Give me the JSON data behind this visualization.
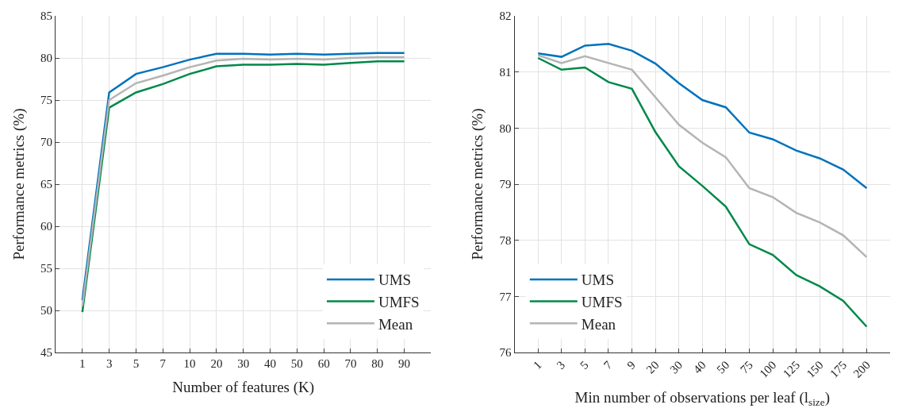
{
  "chart_data": [
    {
      "type": "line",
      "xlabel": "Number of features (K)",
      "ylabel": "Performance metrics (%)",
      "categories": [
        "1",
        "3",
        "5",
        "7",
        "10",
        "20",
        "30",
        "40",
        "50",
        "60",
        "70",
        "80",
        "90"
      ],
      "ylim": [
        45,
        85
      ],
      "yticks": [
        45,
        50,
        55,
        60,
        65,
        70,
        75,
        80,
        85
      ],
      "grid": true,
      "legend": "bottom right",
      "series": [
        {
          "name": "UMS",
          "color": "#0072bd",
          "values": [
            51.2,
            75.9,
            78.1,
            78.9,
            79.8,
            80.5,
            80.5,
            80.4,
            80.5,
            80.4,
            80.5,
            80.6,
            80.6
          ]
        },
        {
          "name": "UMFS",
          "color": "#00884a",
          "values": [
            49.8,
            74.1,
            75.9,
            76.9,
            78.1,
            79.0,
            79.2,
            79.2,
            79.3,
            79.2,
            79.4,
            79.6,
            79.6
          ]
        },
        {
          "name": "Mean",
          "color": "#b4b4b4",
          "values": [
            50.5,
            75.0,
            77.0,
            77.9,
            78.9,
            79.7,
            79.9,
            79.8,
            79.9,
            79.8,
            80.0,
            80.1,
            80.1
          ]
        }
      ]
    },
    {
      "type": "line",
      "xlabel": "Min number of observations per leaf (l$_{size}$)",
      "ylabel": "Performance metrics (%)",
      "categories": [
        "1",
        "3",
        "5",
        "7",
        "9",
        "20",
        "30",
        "40",
        "50",
        "75",
        "100",
        "125",
        "150",
        "175",
        "200"
      ],
      "ylim": [
        76,
        82
      ],
      "yticks": [
        76,
        77,
        78,
        79,
        80,
        81,
        82
      ],
      "grid": true,
      "legend": "bottom left",
      "series": [
        {
          "name": "UMS",
          "color": "#0072bd",
          "values": [
            81.33,
            81.27,
            81.47,
            81.5,
            81.38,
            81.15,
            80.8,
            80.5,
            80.37,
            79.92,
            79.8,
            79.6,
            79.46,
            79.26,
            78.93
          ]
        },
        {
          "name": "UMFS",
          "color": "#00884a",
          "values": [
            81.25,
            81.04,
            81.08,
            80.82,
            80.7,
            79.93,
            79.32,
            78.97,
            78.6,
            77.93,
            77.74,
            77.38,
            77.18,
            76.92,
            76.46
          ]
        },
        {
          "name": "Mean",
          "color": "#b4b4b4",
          "values": [
            81.3,
            81.16,
            81.28,
            81.16,
            81.04,
            80.55,
            80.06,
            79.74,
            79.48,
            78.93,
            78.77,
            78.49,
            78.32,
            78.09,
            77.7
          ]
        }
      ]
    }
  ]
}
